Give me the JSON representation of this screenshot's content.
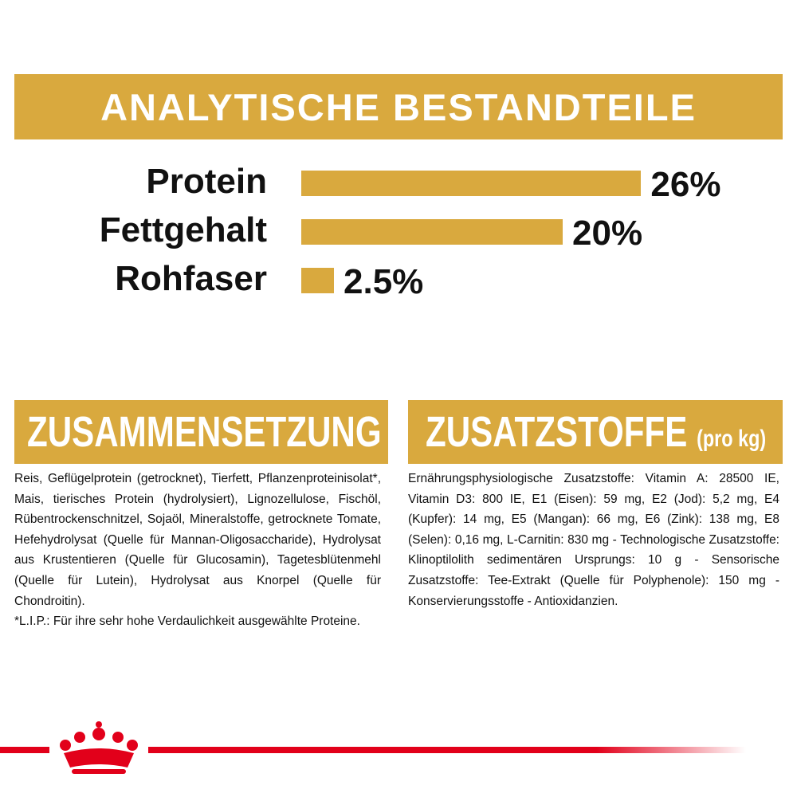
{
  "header": {
    "title": "ANALYTISCHE BESTANDTEILE"
  },
  "chart_data": {
    "type": "bar",
    "orientation": "horizontal",
    "categories": [
      "Protein",
      "Fettgehalt",
      "Rohfaser"
    ],
    "values": [
      26,
      20,
      2.5
    ],
    "value_labels": [
      "26%",
      "20%",
      "2.5%"
    ],
    "color": "#d9a93e"
  },
  "composition": {
    "title": "ZUSAMMENSETZUNG",
    "text": "Reis, Geflügelprotein (getrocknet), Tierfett, Pflanzenproteinisolat*, Mais, tierisches Protein (hydrolysiert), Lignozellulose, Fischöl, Rübentrockenschnitzel, Sojaöl, Mineralstoffe, getrocknete Tomate, Hefehydrolysat (Quelle für Mannan-Oligosaccharide), Hydrolysat aus Krustentieren (Quelle für Glucosamin), Tagetesblütenmehl (Quelle für Lutein), Hydrolysat aus Knorpel (Quelle für Chondroitin).",
    "note": "*L.I.P.: Für ihre sehr hohe Verdaulichkeit ausgewählte Proteine."
  },
  "additives": {
    "title": "ZUSATZSTOFFE",
    "unit": "(pro kg)",
    "text": "Ernährungsphysiologische Zusatzstoffe: Vitamin A: 28500 IE, Vitamin D3: 800 IE, E1 (Eisen): 59 mg, E2 (Jod): 5,2 mg, E4 (Kupfer): 14 mg, E5 (Mangan): 66 mg, E6 (Zink): 138 mg, E8 (Selen): 0,16 mg, L-Carnitin: 830 mg - Technologische Zusatzstoffe: Klinoptilolith sedimentären Ursprungs: 10 g - Sensorische Zusatzstoffe: Tee-Extrakt (Quelle für Polyphenole): 150 mg - Konservierungsstoffe - Antioxidanzien."
  }
}
